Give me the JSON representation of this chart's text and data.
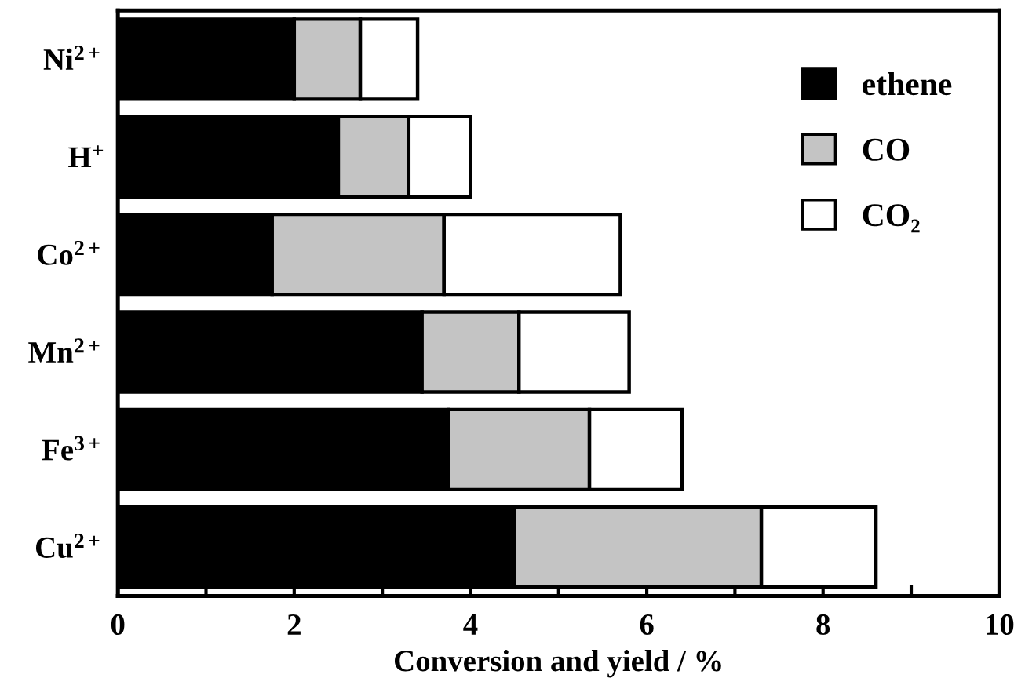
{
  "chart_data": {
    "type": "bar",
    "orientation": "horizontal",
    "stacked": true,
    "categories": [
      "Ni$^{2+}$",
      "H$^{+}$",
      "Co$^{2+}$",
      "Mn$^{2+}$",
      "Fe$^{3+}$",
      "Cu$^{2+}$"
    ],
    "series": [
      {
        "name": "ethene",
        "color": "#000000",
        "values": [
          2.0,
          2.5,
          1.75,
          3.45,
          3.75,
          4.5
        ]
      },
      {
        "name": "CO",
        "color": "#c4c4c4",
        "values": [
          0.75,
          0.8,
          1.95,
          1.1,
          1.6,
          2.8
        ]
      },
      {
        "name": "CO₂",
        "color": "#ffffff",
        "values": [
          0.65,
          0.7,
          2.0,
          1.25,
          1.05,
          1.3
        ]
      }
    ],
    "xlabel": "Conversion and yield / %",
    "xlim": [
      0,
      10
    ],
    "xticks": [
      0,
      {
        "value": 1,
        "label": null
      },
      2,
      {
        "value": 3,
        "label": null
      },
      4,
      {
        "value": 5,
        "label": null
      },
      6,
      {
        "value": 7,
        "label": null
      },
      8,
      {
        "value": 9,
        "label": null
      },
      10
    ],
    "legend": "top right",
    "grid": false
  }
}
